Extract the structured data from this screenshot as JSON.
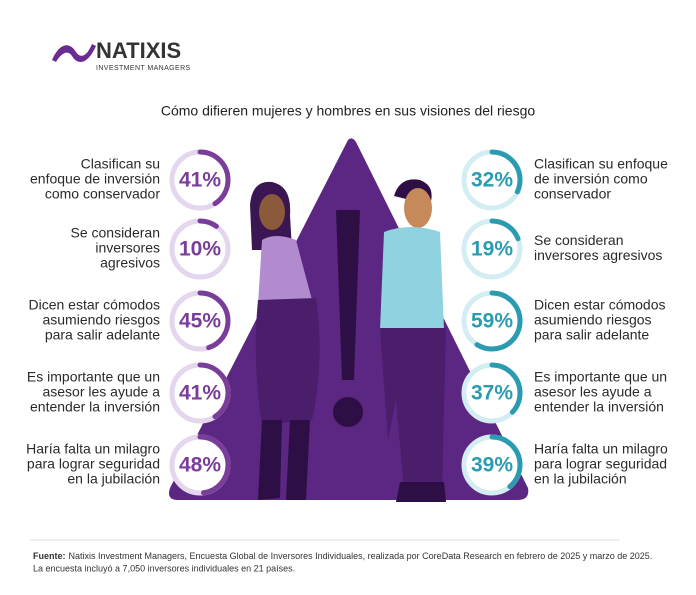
{
  "logo": {
    "name": "NATIXIS",
    "subtitle": "INVESTMENT MANAGERS"
  },
  "title": "Cómo difieren mujeres y hombres en sus visiones del riesgo",
  "rows": [
    {
      "left": {
        "lines": [
          "Clasifican su",
          "enfoque de inversión",
          "como conservador"
        ],
        "value": 41,
        "label": "41%"
      },
      "right": {
        "lines": [
          "Clasifican su enfoque",
          "de inversión como",
          "conservador"
        ],
        "value": 32,
        "label": "32%"
      }
    },
    {
      "left": {
        "lines": [
          "Se consideran",
          "inversores",
          "agresivos"
        ],
        "value": 10,
        "label": "10%"
      },
      "right": {
        "lines": [
          "Se consideran",
          "inversores agresivos"
        ],
        "value": 19,
        "label": "19%"
      }
    },
    {
      "left": {
        "lines": [
          "Dicen estar cómodos",
          "asumiendo riesgos",
          "para salir adelante"
        ],
        "value": 45,
        "label": "45%"
      },
      "right": {
        "lines": [
          "Dicen estar cómodos",
          "asumiendo riesgos",
          "para salir adelante"
        ],
        "value": 59,
        "label": "59%"
      }
    },
    {
      "left": {
        "lines": [
          "Es importante que un",
          "asesor les ayude a",
          "entender la inversión"
        ],
        "value": 41,
        "label": "41%"
      },
      "right": {
        "lines": [
          "Es importante que un",
          "asesor les ayude a",
          "entender la inversión"
        ],
        "value": 37,
        "label": "37%"
      }
    },
    {
      "left": {
        "lines": [
          "Haría falta un milagro",
          "para lograr seguridad",
          "en la jubilación"
        ],
        "value": 48,
        "label": "48%"
      },
      "right": {
        "lines": [
          "Haría falta un milagro",
          "para lograr seguridad",
          "en la jubilación"
        ],
        "value": 39,
        "label": "39%"
      }
    }
  ],
  "footer": {
    "source_label": "Fuente:",
    "source_text": "Natixis Investment Managers, Encuesta Global de Inversores Individuales, realizada por CoreData Research en febrero de 2025 y marzo de 2025.",
    "note": "La encuesta incluyó a 7,050 inversores individuales en 21 países."
  }
}
